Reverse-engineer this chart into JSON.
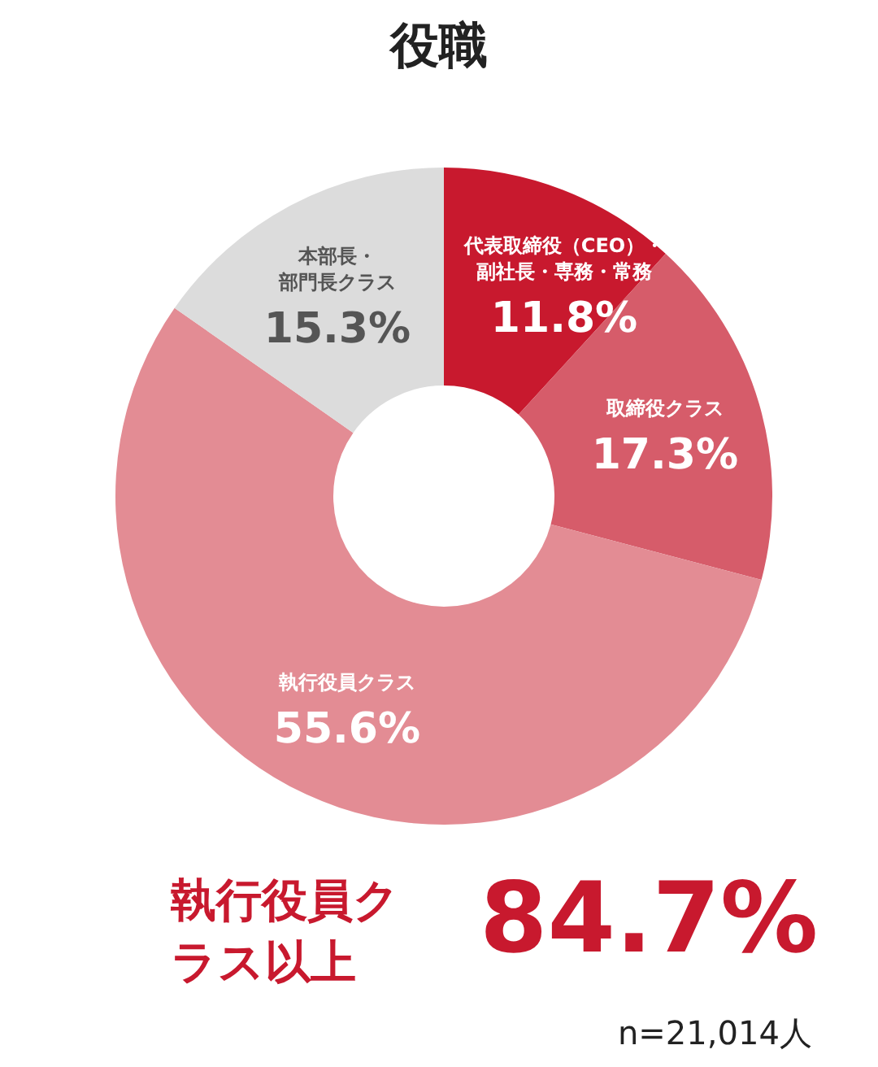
{
  "chart_data": {
    "type": "donut",
    "title": "役職",
    "categories": [
      "代表取締役（CEO）・副社長・専務・常務",
      "取締役クラス",
      "執行役員クラス",
      "本部長・部門長クラス"
    ],
    "values": [
      11.8,
      17.3,
      55.6,
      15.3
    ],
    "value_labels": [
      "11.8%",
      "17.3%",
      "55.6%",
      "15.3%"
    ],
    "colors": [
      "#c8192e",
      "#d65c6a",
      "#e38c94",
      "#dcdcdc"
    ],
    "annotations": [
      "執行役員クラス以上",
      "84.7%",
      "n=21,014人"
    ]
  }
}
